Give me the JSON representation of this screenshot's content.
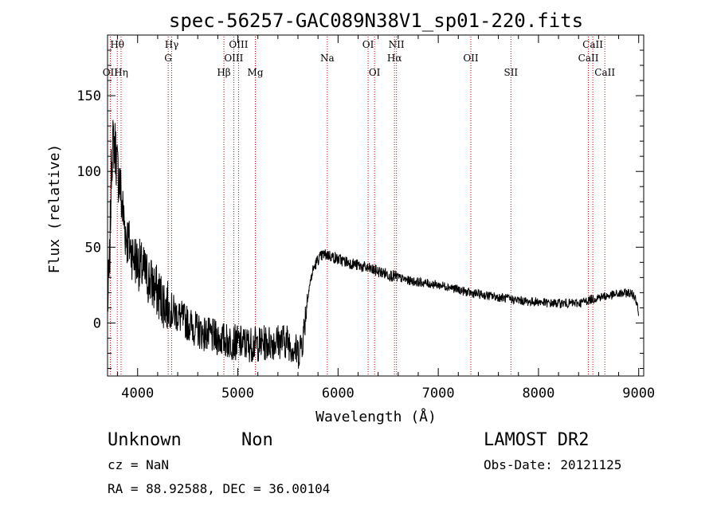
{
  "chart_data": {
    "type": "line",
    "title": "spec-56257-GAC089N38V1_sp01-220.fits",
    "xlabel": "Wavelength (Å)",
    "ylabel": "Flux (relative)",
    "xlim": [
      3700,
      9050
    ],
    "ylim": [
      -35,
      190
    ],
    "xticks": [
      4000,
      5000,
      6000,
      7000,
      8000,
      9000
    ],
    "yticks": [
      0,
      50,
      100,
      150
    ],
    "xtick_labels": [
      "4000",
      "5000",
      "6000",
      "7000",
      "8000",
      "9000"
    ],
    "ytick_labels": [
      "0",
      "50",
      "100",
      "150"
    ],
    "grid": false,
    "line_color": "#000000",
    "marker_color": "#cc0000",
    "spectrum_anchors": {
      "x": [
        3700,
        3720,
        3740,
        3760,
        3780,
        3800,
        3820,
        3840,
        3860,
        3880,
        3900,
        3950,
        4000,
        4050,
        4100,
        4150,
        4200,
        4300,
        4400,
        4500,
        4600,
        4700,
        4800,
        4900,
        5000,
        5100,
        5200,
        5300,
        5400,
        5500,
        5600,
        5650,
        5700,
        5750,
        5800,
        5850,
        5900,
        6000,
        6100,
        6200,
        6300,
        6400,
        6500,
        6600,
        6700,
        6800,
        6900,
        7000,
        7100,
        7200,
        7300,
        7400,
        7500,
        7600,
        7700,
        7800,
        7900,
        8000,
        8100,
        8200,
        8300,
        8400,
        8500,
        8600,
        8700,
        8800,
        8900,
        8960,
        8990,
        9000
      ],
      "y": [
        12,
        35,
        110,
        120,
        115,
        100,
        95,
        80,
        70,
        60,
        55,
        45,
        40,
        35,
        30,
        25,
        20,
        10,
        5,
        0,
        -5,
        -8,
        -10,
        -12,
        -13,
        -14,
        -14,
        -13,
        -12,
        -12,
        -20,
        -10,
        20,
        35,
        42,
        45,
        45,
        42,
        40,
        38,
        36,
        34,
        32,
        30,
        28,
        27,
        26,
        25,
        24,
        22,
        20,
        19,
        18,
        17,
        16,
        15,
        14,
        14,
        13,
        13,
        13,
        13,
        15,
        17,
        18,
        19,
        20,
        18,
        12,
        0
      ],
      "noise_amplitude_by_region": [
        {
          "x_range": [
            3700,
            3900
          ],
          "amplitude": 20
        },
        {
          "x_range": [
            3900,
            4300
          ],
          "amplitude": 18
        },
        {
          "x_range": [
            4300,
            5700
          ],
          "amplitude": 12
        },
        {
          "x_range": [
            5700,
            6600
          ],
          "amplitude": 4
        },
        {
          "x_range": [
            6600,
            9000
          ],
          "amplitude": 3
        }
      ]
    },
    "line_markers": [
      {
        "label": "OII",
        "wavelength": 3727,
        "row": 2
      },
      {
        "label": "Hθ",
        "wavelength": 3797,
        "row": 0
      },
      {
        "label": "Hη",
        "wavelength": 3835,
        "row": 2
      },
      {
        "label": "Hγ",
        "wavelength": 4340,
        "row": 0
      },
      {
        "label": "G",
        "wavelength": 4305,
        "row": 1
      },
      {
        "label": "Hβ",
        "wavelength": 4861,
        "row": 2
      },
      {
        "label": "OIII",
        "wavelength": 5007,
        "row": 0
      },
      {
        "label": "OIII",
        "wavelength": 4959,
        "row": 1
      },
      {
        "label": "Mg",
        "wavelength": 5175,
        "row": 2
      },
      {
        "label": "Na",
        "wavelength": 5893,
        "row": 1
      },
      {
        "label": "OI",
        "wavelength": 6300,
        "row": 0
      },
      {
        "label": "OI",
        "wavelength": 6364,
        "row": 2
      },
      {
        "label": "NII",
        "wavelength": 6583,
        "row": 0
      },
      {
        "label": "Hα",
        "wavelength": 6563,
        "row": 1
      },
      {
        "label": "OII",
        "wavelength": 7325,
        "row": 1
      },
      {
        "label": "SII",
        "wavelength": 7725,
        "row": 2
      },
      {
        "label": "CaII",
        "wavelength": 8542,
        "row": 0
      },
      {
        "label": "CaII",
        "wavelength": 8498,
        "row": 1
      },
      {
        "label": "CaII",
        "wavelength": 8662,
        "row": 2
      }
    ]
  },
  "info": {
    "object_class": "Unknown",
    "object_subclass": "Non",
    "survey": "LAMOST DR2",
    "cz": "cz = NaN",
    "obs_date": "Obs-Date: 20121125",
    "coords": "RA =  88.92588, DEC =  36.00104"
  }
}
